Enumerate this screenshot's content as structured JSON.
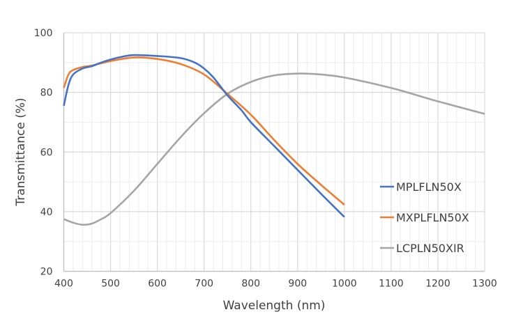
{
  "chart_data": {
    "type": "line",
    "title": "",
    "xlabel": "Wavelength (nm)",
    "ylabel": "Transmittance (%)",
    "xlim": [
      400,
      1300
    ],
    "ylim": [
      20,
      100
    ],
    "xticks": [
      400,
      500,
      600,
      700,
      800,
      900,
      1000,
      1100,
      1200,
      1300
    ],
    "yticks": [
      20,
      40,
      60,
      80,
      100
    ],
    "grid": true,
    "minor_grid": true,
    "legend_position": "right",
    "series": [
      {
        "name": "MPLFLN50X",
        "color": "#4472C4",
        "x": [
          400,
          410,
          420,
          440,
          460,
          480,
          500,
          520,
          550,
          600,
          650,
          680,
          700,
          720,
          750,
          780,
          800,
          850,
          900,
          950,
          1000
        ],
        "y": [
          75.5,
          82.5,
          86,
          88,
          88.8,
          90,
          91,
          91.8,
          92.5,
          92.2,
          91.5,
          90,
          88,
          85,
          79,
          74,
          70,
          62,
          54,
          46,
          38.2
        ]
      },
      {
        "name": "MXPLFLN50X",
        "color": "#ED7D31",
        "x": [
          400,
          410,
          420,
          440,
          460,
          500,
          550,
          600,
          650,
          700,
          750,
          800,
          850,
          900,
          950,
          1000
        ],
        "y": [
          81.5,
          86,
          87.5,
          88.5,
          89,
          90.5,
          91.7,
          91.2,
          89.5,
          86,
          79.5,
          72.5,
          64,
          56,
          49,
          42.3
        ]
      },
      {
        "name": "LCPLN50XIR",
        "color": "#A5A5A5",
        "x": [
          400,
          420,
          440,
          460,
          480,
          500,
          550,
          600,
          650,
          700,
          750,
          800,
          850,
          900,
          950,
          1000,
          1100,
          1200,
          1300
        ],
        "y": [
          37.5,
          36.3,
          35.6,
          36,
          37.5,
          39.5,
          47,
          56,
          65,
          73,
          79.5,
          83.5,
          85.7,
          86.3,
          86,
          85,
          81.5,
          77,
          72.8
        ]
      }
    ]
  }
}
